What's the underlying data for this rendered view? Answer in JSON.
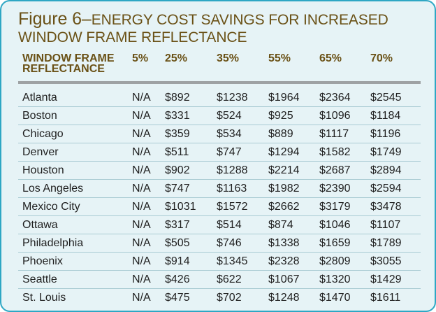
{
  "title": {
    "figure": "Figure 6–",
    "line1": "ENERGY COST SAVINGS FOR INCREASED",
    "line2": "WINDOW FRAME REFLECTANCE"
  },
  "table": {
    "header": {
      "label_line1": "WINDOW FRAME",
      "label_line2": "REFLECTANCE",
      "columns": [
        "5%",
        "25%",
        "35%",
        "55%",
        "65%",
        "70%"
      ]
    },
    "rows": [
      {
        "city": "Atlanta",
        "values": [
          "N/A",
          "$892",
          "$1238",
          "$1964",
          "$2364",
          "$2545"
        ]
      },
      {
        "city": "Boston",
        "values": [
          "N/A",
          "$331",
          "$524",
          "$925",
          "$1096",
          "$1184"
        ]
      },
      {
        "city": "Chicago",
        "values": [
          "N/A",
          "$359",
          "$534",
          "$889",
          "$1117",
          "$1196"
        ]
      },
      {
        "city": "Denver",
        "values": [
          "N/A",
          "$511",
          "$747",
          "$1294",
          "$1582",
          "$1749"
        ]
      },
      {
        "city": "Houston",
        "values": [
          "N/A",
          "$902",
          "$1288",
          "$2214",
          "$2687",
          "$2894"
        ]
      },
      {
        "city": "Los Angeles",
        "values": [
          "N/A",
          "$747",
          "$1163",
          "$1982",
          "$2390",
          "$2594"
        ]
      },
      {
        "city": "Mexico City",
        "values": [
          "N/A",
          "$1031",
          "$1572",
          "$2662",
          "$3179",
          "$3478"
        ]
      },
      {
        "city": "Ottawa",
        "values": [
          "N/A",
          "$317",
          "$514",
          "$874",
          "$1046",
          "$1107"
        ]
      },
      {
        "city": "Philadelphia",
        "values": [
          "N/A",
          "$505",
          "$746",
          "$1338",
          "$1659",
          "$1789"
        ]
      },
      {
        "city": "Phoenix",
        "values": [
          "N/A",
          "$914",
          "$1345",
          "$2328",
          "$2809",
          "$3055"
        ]
      },
      {
        "city": "Seattle",
        "values": [
          "N/A",
          "$426",
          "$622",
          "$1067",
          "$1320",
          "$1429"
        ]
      },
      {
        "city": "St. Louis",
        "values": [
          "N/A",
          "$475",
          "$702",
          "$1248",
          "$1470",
          "$1611"
        ]
      }
    ]
  },
  "colors": {
    "background": "#e6f3f6",
    "border": "#2ea7c4",
    "title": "#6a5116",
    "text": "#1f1f1f",
    "header_rule": "#9ea2a4",
    "row_rule": "#a9cbd3"
  }
}
